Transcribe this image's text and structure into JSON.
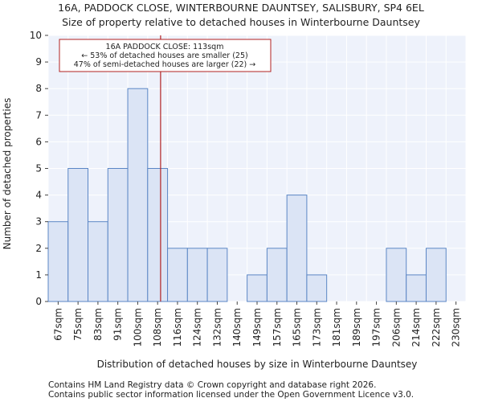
{
  "chart_data": {
    "type": "bar",
    "title": "16A, PADDOCK CLOSE, WINTERBOURNE DAUNTSEY, SALISBURY, SP4 6EL",
    "subtitle": "Size of property relative to detached houses in Winterbourne Dauntsey",
    "xlabel": "Distribution of detached houses by size in Winterbourne Dauntsey",
    "ylabel": "Number of detached properties",
    "categories": [
      "67sqm",
      "75sqm",
      "83sqm",
      "91sqm",
      "100sqm",
      "108sqm",
      "116sqm",
      "124sqm",
      "132sqm",
      "140sqm",
      "149sqm",
      "157sqm",
      "165sqm",
      "173sqm",
      "181sqm",
      "189sqm",
      "197sqm",
      "206sqm",
      "214sqm",
      "222sqm",
      "230sqm"
    ],
    "values": [
      3,
      5,
      3,
      5,
      8,
      5,
      2,
      2,
      2,
      0,
      1,
      2,
      4,
      1,
      0,
      0,
      0,
      2,
      1,
      2,
      0
    ],
    "ylim": [
      0,
      10
    ],
    "yticks": [
      "0",
      "1",
      "2",
      "3",
      "4",
      "5",
      "6",
      "7",
      "8",
      "9",
      "10"
    ],
    "grid": true,
    "marker_value": 113,
    "marker_position_index": 5.65,
    "annotation": {
      "line1": "16A PADDOCK CLOSE: 113sqm",
      "line2": "← 53% of detached houses are smaller (25)",
      "line3": "47% of semi-detached houses are larger (22) →"
    },
    "colors": {
      "bar_fill": "#dbe4f5",
      "bar_stroke": "#5b86c5",
      "marker": "#b22222",
      "plot_bg": "#eef2fb",
      "grid": "#ffffff"
    }
  },
  "footer": {
    "line1": "Contains HM Land Registry data © Crown copyright and database right 2026.",
    "line2": "Contains public sector information licensed under the Open Government Licence v3.0."
  }
}
